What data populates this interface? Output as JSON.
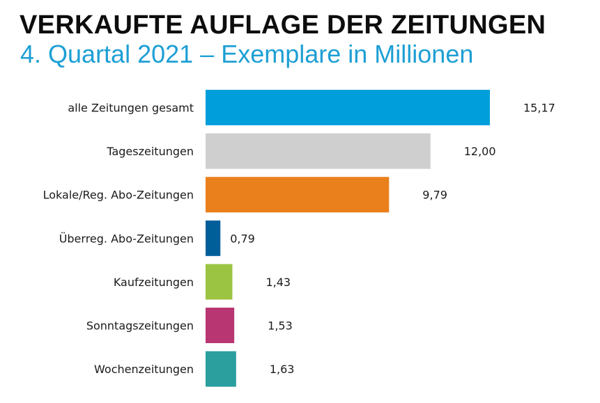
{
  "chart_data": {
    "type": "bar",
    "orientation": "horizontal",
    "title": "VERKAUFTE AUFLAGE DER ZEITUNGEN",
    "subtitle": "4. Quartal 2021 – Exemplare in Millionen",
    "categories": [
      "alle Zeitungen gesamt",
      "Tageszeitungen",
      "Lokale/Reg. Abo-Zeitungen",
      "Überreg. Abo-Zeitungen",
      "Kaufzeitungen",
      "Sonntagszeitungen",
      "Wochenzeitungen"
    ],
    "values": [
      15.17,
      12.0,
      9.79,
      0.79,
      1.43,
      1.53,
      1.63
    ],
    "value_labels": [
      "15,17",
      "12,00",
      "9,79",
      "0,79",
      "1,43",
      "1,53",
      "1,63"
    ],
    "colors": [
      "#009fdb",
      "#cfcfcf",
      "#ea801c",
      "#005f99",
      "#9cc443",
      "#b83671",
      "#2b9e9e"
    ],
    "xlim": [
      0,
      15.17
    ],
    "grid": false,
    "legend": "none"
  }
}
